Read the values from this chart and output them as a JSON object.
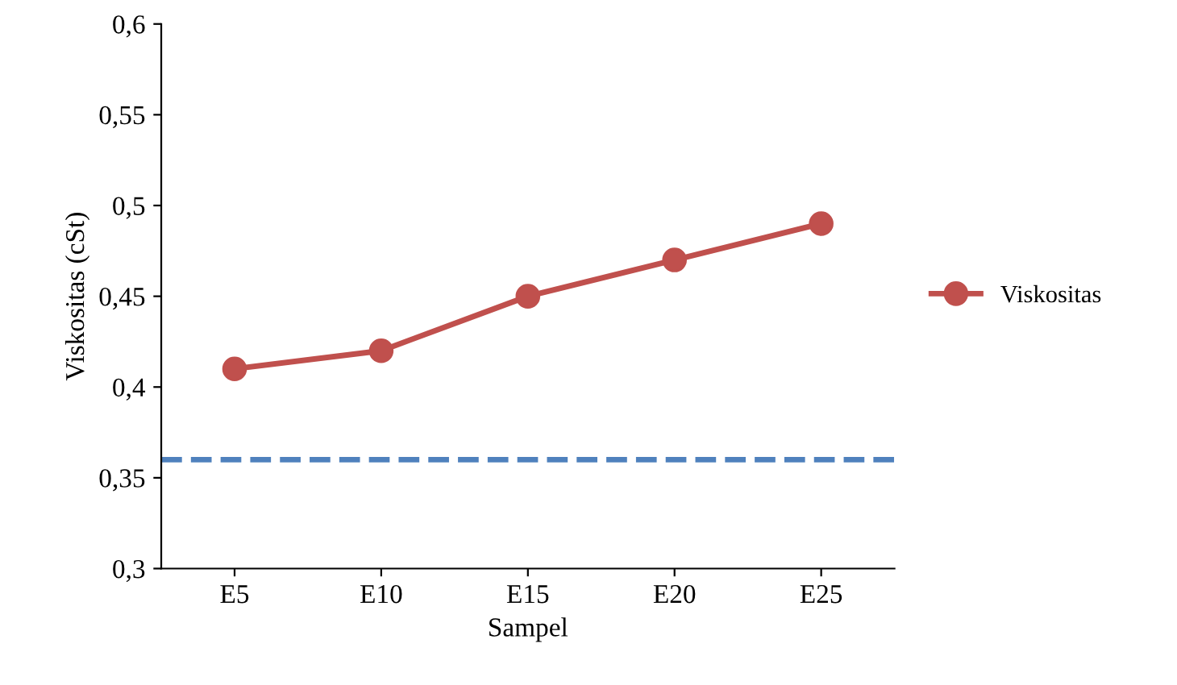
{
  "chart_data": {
    "type": "line",
    "xlabel": "Sampel",
    "ylabel": "Viskositas (cSt)",
    "categories": [
      "E5",
      "E10",
      "E15",
      "E20",
      "E25"
    ],
    "series": [
      {
        "name": "Viskositas",
        "color": "#c0504d",
        "values": [
          0.41,
          0.42,
          0.45,
          0.47,
          0.49
        ]
      }
    ],
    "marker": "circle",
    "line_style": "solid",
    "ref_lines": [
      {
        "axis": "y",
        "value": 0.36,
        "color": "#4f81bd",
        "line_style": "dashed"
      }
    ],
    "ylim": [
      0.3,
      0.6
    ],
    "yticks": [
      {
        "value": 0.3,
        "label": "0,3"
      },
      {
        "value": 0.35,
        "label": "0,35"
      },
      {
        "value": 0.4,
        "label": "0,4"
      },
      {
        "value": 0.45,
        "label": "0,45"
      },
      {
        "value": 0.5,
        "label": "0,5"
      },
      {
        "value": 0.55,
        "label": "0,55"
      },
      {
        "value": 0.6,
        "label": "0,6"
      }
    ],
    "grid": false,
    "legend": "right"
  }
}
